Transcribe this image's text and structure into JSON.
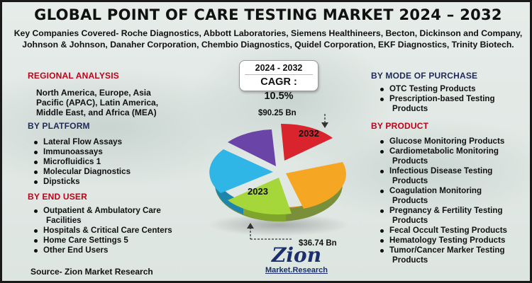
{
  "title": "GLOBAL POINT OF CARE TESTING MARKET 2024 – 2032",
  "companies_line1": "Key Companies Covered- Roche Diagnostics, Abbott Laboratories, Siemens Healthineers, Becton, Dickinson and Company,",
  "companies_line2": "Johnson & Johnson, Danaher Corporation, Chembio Diagnostics, Quidel Corporation, EKF Diagnostics, Trinity Biotech.",
  "regional": {
    "heading": "REGIONAL ANALYSIS",
    "line1": "North America, Europe, Asia",
    "line2": "Pacific (APAC), Latin America,",
    "line3": "Middle East, and Africa (MEA)"
  },
  "platform": {
    "heading": "BY PLATFORM",
    "items": [
      "Lateral Flow Assays",
      "Immunoassays",
      "Microfluidics 1",
      "Molecular Diagnostics",
      "Dipsticks"
    ]
  },
  "end_user": {
    "heading": "BY END USER",
    "items": [
      "Outpatient & Ambulatory Care",
      "Facilities",
      "Hospitals & Critical Care Centers",
      "Home Care Settings 5",
      "Other End Users"
    ]
  },
  "source": "Source- Zion Market Research",
  "cagr": {
    "years": "2024 - 2032",
    "value": "CAGR : 10.5%"
  },
  "chart": {
    "value_2032": "$90.25 Bn",
    "value_2023": "$36.74 Bn",
    "label_2032": "2032",
    "label_2023": "2023",
    "colors": [
      "#d9242d",
      "#f5a623",
      "#a5d63a",
      "#2fb6e6",
      "#6a44a6"
    ]
  },
  "mode_of_purchase": {
    "heading": "BY MODE OF PURCHASE",
    "items": [
      "OTC Testing Products",
      "Prescription-based Testing",
      "Products"
    ]
  },
  "product": {
    "heading": "BY PRODUCT",
    "items": [
      "Glucose Monitoring Products",
      "Cardiometabolic Monitoring",
      "Products",
      "Infectious Disease Testing",
      "Products",
      "Coagulation Monitoring",
      "Products",
      "Pregnancy & Fertility Testing",
      "Products",
      "Fecal Occult Testing Products",
      "Hematology Testing Products",
      "Tumor/Cancer Marker Testing",
      "Products"
    ]
  },
  "logo": {
    "main": "Zion",
    "sub": "Market.Research"
  }
}
